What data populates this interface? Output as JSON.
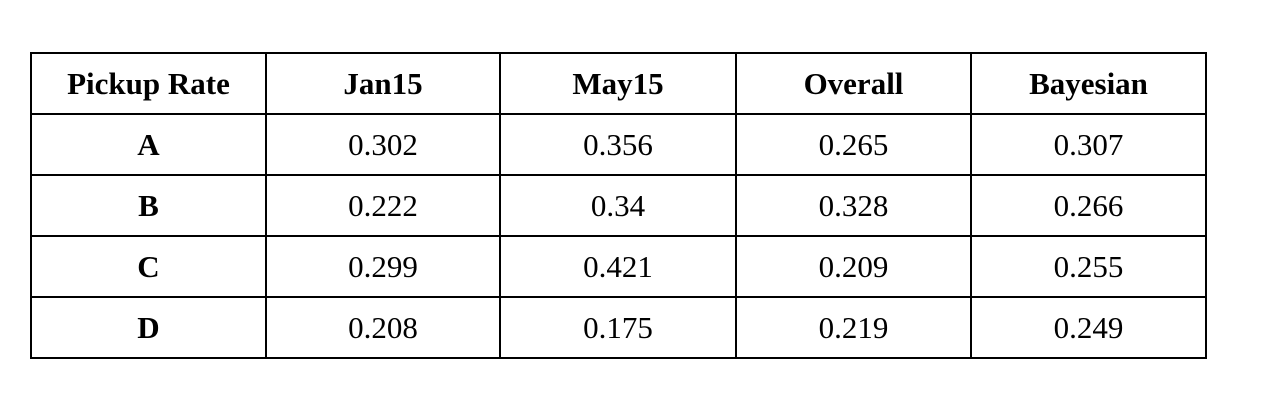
{
  "table": {
    "headers": [
      "Pickup Rate",
      "Jan15",
      "May15",
      "Overall",
      "Bayesian"
    ],
    "rows": [
      {
        "label": "A",
        "values": [
          "0.302",
          "0.356",
          "0.265",
          "0.307"
        ]
      },
      {
        "label": "B",
        "values": [
          "0.222",
          "0.34",
          "0.328",
          "0.266"
        ]
      },
      {
        "label": "C",
        "values": [
          "0.299",
          "0.421",
          "0.209",
          "0.255"
        ]
      },
      {
        "label": "D",
        "values": [
          "0.208",
          "0.175",
          "0.219",
          "0.249"
        ]
      }
    ]
  }
}
